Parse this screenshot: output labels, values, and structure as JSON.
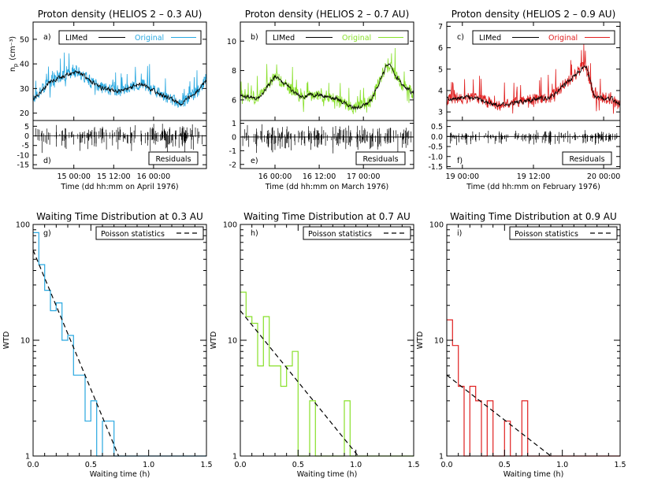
{
  "chart_data": [
    {
      "id": "a",
      "type": "line",
      "title": "Proton density (HELIOS 2 – 0.3 AU)",
      "panel_tag": "a)",
      "ylabel_main": "n",
      "ylabel_sub": "p",
      "ylabel_unit": "(cm⁻³)",
      "ylim": [
        17,
        57
      ],
      "yticks": [
        20,
        30,
        40,
        50
      ],
      "tick_labels": [
        "20",
        "30",
        "40",
        "50"
      ],
      "legend": [
        {
          "label": "LIMed",
          "color": "#000000"
        },
        {
          "label": "Original",
          "color": "#29a8e0"
        }
      ],
      "trend": {
        "x": [
          0,
          0.1,
          0.25,
          0.4,
          0.5,
          0.62,
          0.75,
          0.85,
          0.95,
          1.0
        ],
        "y": [
          26,
          33,
          37,
          30,
          29,
          32,
          27,
          24,
          29,
          34
        ]
      }
    },
    {
      "id": "b",
      "type": "line",
      "title": "Proton density (HELIOS 2 – 0.7 AU)",
      "panel_tag": "b)",
      "ylim": [
        4.6,
        11.3
      ],
      "yticks": [
        6,
        8,
        10
      ],
      "tick_labels": [
        "6",
        "8",
        "10"
      ],
      "legend": [
        {
          "label": "LIMed",
          "color": "#000000"
        },
        {
          "label": "Original",
          "color": "#88e02a"
        }
      ],
      "trend": {
        "x": [
          0,
          0.1,
          0.2,
          0.35,
          0.45,
          0.55,
          0.65,
          0.75,
          0.85,
          0.92,
          1.0
        ],
        "y": [
          6.3,
          6.1,
          7.6,
          6.2,
          6.4,
          6.1,
          5.4,
          5.9,
          8.5,
          7.2,
          6.4
        ]
      }
    },
    {
      "id": "c",
      "type": "line",
      "title": "Proton density (HELIOS 2 – 0.9 AU)",
      "panel_tag": "c)",
      "ylim": [
        2.6,
        7.2
      ],
      "yticks": [
        3,
        4,
        5,
        6,
        7
      ],
      "tick_labels": [
        "3",
        "4",
        "5",
        "6",
        "7"
      ],
      "legend": [
        {
          "label": "LIMed",
          "color": "#000000"
        },
        {
          "label": "Original",
          "color": "#e02020"
        }
      ],
      "trend": {
        "x": [
          0,
          0.15,
          0.3,
          0.45,
          0.6,
          0.75,
          0.8,
          0.85,
          0.95,
          1.0
        ],
        "y": [
          3.6,
          3.7,
          3.3,
          3.5,
          3.7,
          4.8,
          5.2,
          3.7,
          3.6,
          3.3
        ]
      }
    },
    {
      "id": "d",
      "type": "line",
      "panel_tag": "d)",
      "label_box": "Residuals",
      "ylim": [
        -17,
        8
      ],
      "yticks": [
        -15,
        -10,
        -5,
        0,
        5
      ],
      "tick_labels": [
        "-15",
        "-10",
        "-5",
        "0",
        "5"
      ],
      "xticks_frac": [
        0.235,
        0.465,
        0.695
      ],
      "xtick_labels": [
        "15 00:00",
        "15 12:00",
        "16 00:00"
      ],
      "xlabel": "Time (dd hh:mm on April 1976)",
      "residual_amp": 5
    },
    {
      "id": "e",
      "type": "line",
      "panel_tag": "e)",
      "label_box": "Residuals",
      "ylim": [
        -2.3,
        1.2
      ],
      "yticks": [
        -2,
        -1,
        0,
        1
      ],
      "tick_labels": [
        "-2",
        "-1",
        "0",
        "1"
      ],
      "xticks_frac": [
        0.2,
        0.455,
        0.71
      ],
      "xtick_labels": [
        "16 00:00",
        "16 12:00",
        "17 00:00"
      ],
      "xlabel": "Time (dd hh:mm on March 1976)",
      "residual_amp": 0.7
    },
    {
      "id": "f",
      "type": "line",
      "panel_tag": "f)",
      "label_box": "Residuals",
      "ylim": [
        -1.6,
        0.8
      ],
      "yticks": [
        -1.5,
        -1.0,
        -0.5,
        0.0,
        0.5
      ],
      "tick_labels": [
        "-1.5",
        "-1.0",
        "-0.5",
        "0.0",
        "0.5"
      ],
      "xticks_frac": [
        0.09,
        0.5,
        0.905
      ],
      "xtick_labels": [
        "19 00:00",
        "19 12:00",
        "20 00:00"
      ],
      "xlabel": "Time (dd hh:mm on February 1976)",
      "residual_amp": 0.25
    },
    {
      "id": "g",
      "type": "line",
      "title": "Waiting Time Distribution at 0.3 AU",
      "panel_tag": "g)",
      "xlabel": "Waiting time (h)",
      "ylabel": "WTD",
      "xlim": [
        0,
        1.5
      ],
      "xticks": [
        0,
        0.5,
        1.0,
        1.5
      ],
      "xtick_labels": [
        "0.0",
        "0.5",
        "1.0",
        "1.5"
      ],
      "ylim": [
        1,
        100
      ],
      "yscale": "log",
      "yticks": [
        1,
        10,
        100
      ],
      "tick_labels": [
        "1",
        "10",
        "100"
      ],
      "legend": [
        {
          "label": "Poisson statistics"
        }
      ],
      "color": "#29a8e0",
      "fit": {
        "x": [
          0,
          0.74
        ],
        "y": [
          60,
          1
        ]
      },
      "steps": {
        "x": [
          0.0,
          0.05,
          0.1,
          0.15,
          0.2,
          0.25,
          0.3,
          0.35,
          0.4,
          0.45,
          0.5,
          0.55,
          0.6,
          0.65,
          0.7,
          0.75,
          1.5
        ],
        "y": [
          85,
          45,
          27,
          18,
          21,
          10,
          11,
          5,
          5,
          2,
          3,
          1,
          2,
          2,
          1,
          1,
          1
        ]
      }
    },
    {
      "id": "h",
      "type": "line",
      "title": "Waiting Time Distribution at 0.7 AU",
      "panel_tag": "h)",
      "xlabel": "Waiting time (h)",
      "ylabel": "WTD",
      "xlim": [
        0,
        1.5
      ],
      "xticks": [
        0,
        0.5,
        1.0,
        1.5
      ],
      "xtick_labels": [
        "0.0",
        "0.5",
        "1.0",
        "1.5"
      ],
      "ylim": [
        1,
        100
      ],
      "yscale": "log",
      "yticks": [
        1,
        10,
        100
      ],
      "tick_labels": [
        "1",
        "10",
        "100"
      ],
      "legend": [
        {
          "label": "Poisson statistics"
        }
      ],
      "color": "#88e02a",
      "fit": {
        "x": [
          0,
          1.02
        ],
        "y": [
          18,
          1
        ]
      },
      "steps": {
        "x": [
          0.0,
          0.05,
          0.1,
          0.15,
          0.2,
          0.25,
          0.3,
          0.35,
          0.4,
          0.45,
          0.5,
          0.55,
          0.6,
          0.65,
          0.7,
          0.75,
          0.8,
          0.85,
          0.9,
          0.95,
          1.5
        ],
        "y": [
          26,
          16,
          14,
          6,
          16,
          6,
          6,
          4,
          6,
          8,
          1,
          1,
          3,
          1,
          1,
          1,
          1,
          1,
          3,
          1,
          1
        ]
      }
    },
    {
      "id": "i",
      "type": "line",
      "title": "Waiting Time Distribution at 0.9 AU",
      "panel_tag": "i)",
      "xlabel": "Waiting time (h)",
      "ylabel": "WTD",
      "xlim": [
        0,
        1.5
      ],
      "xticks": [
        0,
        0.5,
        1.0,
        1.5
      ],
      "xtick_labels": [
        "0.0",
        "0.5",
        "1.0",
        "1.5"
      ],
      "ylim": [
        1,
        100
      ],
      "yscale": "log",
      "yticks": [
        1,
        10,
        100
      ],
      "tick_labels": [
        "1",
        "10",
        "100"
      ],
      "legend": [
        {
          "label": "Poisson statistics"
        }
      ],
      "color": "#e02020",
      "fit": {
        "x": [
          0,
          0.9
        ],
        "y": [
          5,
          1
        ]
      },
      "steps": {
        "x": [
          0.0,
          0.05,
          0.1,
          0.15,
          0.2,
          0.25,
          0.3,
          0.35,
          0.4,
          0.45,
          0.5,
          0.55,
          0.6,
          0.65,
          0.7,
          1.5
        ],
        "y": [
          15,
          9,
          4,
          1,
          4,
          3,
          1,
          3,
          1,
          1,
          2,
          1,
          1,
          3,
          1,
          1
        ]
      }
    }
  ]
}
